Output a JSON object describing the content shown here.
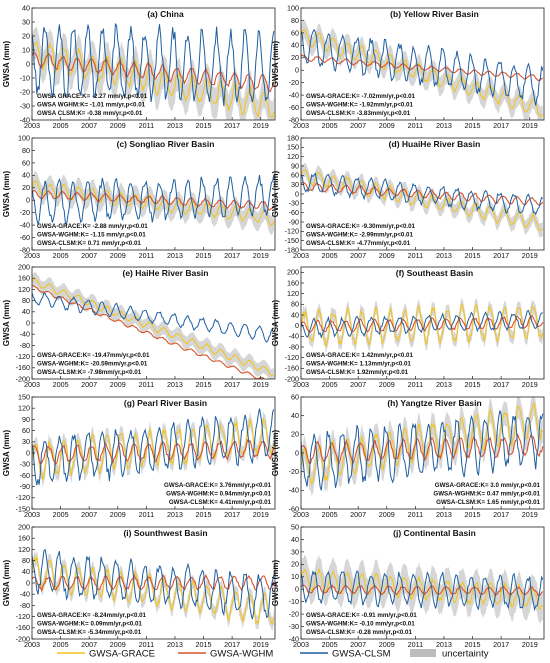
{
  "figure": {
    "legend": [
      {
        "name": "GWSA-GRACE",
        "color": "#f2c318",
        "kind": "line"
      },
      {
        "name": "GWSA-WGHM",
        "color": "#d9532b",
        "kind": "line"
      },
      {
        "name": "GWSA-CLSM",
        "color": "#1f5fa0",
        "kind": "line"
      },
      {
        "name": "uncertainty",
        "color": "#bdbdbd",
        "kind": "band"
      }
    ],
    "series_colors": {
      "grace": "#f2c318",
      "wghm": "#d9532b",
      "clsm": "#1f5fa0",
      "uncertainty": "#c8c8c8"
    }
  },
  "chart_data": [
    {
      "type": "line",
      "title": "(a) China",
      "ylabel": "GWSA (mm)",
      "xlim": [
        2003,
        2020
      ],
      "ylim": [
        -40,
        40
      ],
      "x_ticks": [
        "2003",
        "2005",
        "2007",
        "2009",
        "2011",
        "2013",
        "2015",
        "2017",
        "2019"
      ],
      "y_ticks": [
        -40,
        -30,
        -20,
        -10,
        0,
        10,
        20,
        30,
        40
      ],
      "stats": [
        "GWSA GRACE:K= -2.27 mm/yr,p<0.01",
        "GWSA WGHM:K= -1.01 mm/yr,p<0.01",
        "GWSA CLSM:K= -0.38 mm/yr,p<0.01"
      ],
      "stats_pos": "bottom-left",
      "series": [
        {
          "key": "grace",
          "trend_mm_per_yr": -2.27,
          "seasonal_amplitude": 9,
          "start_level": 8
        },
        {
          "key": "wghm",
          "trend_mm_per_yr": -1.01,
          "seasonal_amplitude": 5,
          "start_level": 3
        },
        {
          "key": "clsm",
          "trend_mm_per_yr": -0.38,
          "seasonal_amplitude": 24,
          "start_level": 3
        }
      ]
    },
    {
      "type": "line",
      "title": "(b) Yellow River Basin",
      "ylabel": "GWSA (mm)",
      "xlim": [
        2003,
        2020
      ],
      "ylim": [
        -80,
        100
      ],
      "x_ticks": [
        "2003",
        "2005",
        "2007",
        "2009",
        "2011",
        "2013",
        "2015",
        "2017",
        "2019"
      ],
      "y_ticks": [
        -80,
        -60,
        -40,
        -20,
        0,
        20,
        40,
        60,
        80,
        100
      ],
      "stats": [
        "GWSA-GRACE:K= -7.02mm/yr,p<0.01",
        "GWSA-WGHM:K= -1.92mm/yr,p<0.01",
        "GWSA-CLSM:K= -3.83mm/yr,p<0.01"
      ],
      "stats_pos": "bottom-left",
      "series": [
        {
          "key": "grace",
          "trend_mm_per_yr": -7.02,
          "seasonal_amplitude": 12,
          "start_level": 55
        },
        {
          "key": "wghm",
          "trend_mm_per_yr": -1.92,
          "seasonal_amplitude": 4,
          "start_level": 20
        },
        {
          "key": "clsm",
          "trend_mm_per_yr": -3.83,
          "seasonal_amplitude": 28,
          "start_level": 40
        }
      ]
    },
    {
      "type": "line",
      "title": "(c) Songliao  River Basin",
      "ylabel": "GWSA (mm)",
      "xlim": [
        2003,
        2020
      ],
      "ylim": [
        -80,
        100
      ],
      "x_ticks": [
        "2003",
        "2005",
        "2007",
        "2009",
        "2011",
        "2013",
        "2015",
        "2017",
        "2019"
      ],
      "y_ticks": [
        -80,
        -60,
        -40,
        -20,
        0,
        20,
        40,
        60,
        80,
        100
      ],
      "stats": [
        "GWSA-GRACE:K= -2.88 mm/yr,p<0.01",
        "GWSA-WGHM:K= -1.15 mm/yr,p<0.01",
        "GWSA-CLSM:K= 0.71 mm/yr,p<0.01"
      ],
      "stats_pos": "bottom-left",
      "series": [
        {
          "key": "grace",
          "trend_mm_per_yr": -2.88,
          "seasonal_amplitude": 10,
          "start_level": 20
        },
        {
          "key": "wghm",
          "trend_mm_per_yr": -1.15,
          "seasonal_amplitude": 6,
          "start_level": 10
        },
        {
          "key": "clsm",
          "trend_mm_per_yr": 0.71,
          "seasonal_amplitude": 30,
          "start_level": -5
        }
      ]
    },
    {
      "type": "line",
      "title": "(d) HuaiHe River Basin",
      "ylabel": "GWSA (mm)",
      "xlim": [
        2003,
        2020
      ],
      "ylim": [
        -180,
        180
      ],
      "x_ticks": [
        "2003",
        "2005",
        "2007",
        "2009",
        "2011",
        "2013",
        "2015",
        "2017",
        "2019"
      ],
      "y_ticks": [
        -180,
        -150,
        -120,
        -90,
        -60,
        -30,
        0,
        30,
        60,
        90,
        120,
        150,
        180
      ],
      "stats": [
        "GWSA-GRACE:K= -9.30mm/yr,p<0.01",
        "GWSA-WGHM:K= -2.99mm/yr,p<0.01",
        "GWSA-CLSM:K= -4.77mm/yr,p<0.01"
      ],
      "stats_pos": "bottom-left",
      "series": [
        {
          "key": "grace",
          "trend_mm_per_yr": -9.3,
          "seasonal_amplitude": 22,
          "start_level": 60
        },
        {
          "key": "wghm",
          "trend_mm_per_yr": -2.99,
          "seasonal_amplitude": 12,
          "start_level": 25
        },
        {
          "key": "clsm",
          "trend_mm_per_yr": -4.77,
          "seasonal_amplitude": 30,
          "start_level": 40
        }
      ]
    },
    {
      "type": "line",
      "title": "(e) HaiHe River Basin",
      "ylabel": "GWSA (mm)",
      "xlim": [
        2003,
        2020
      ],
      "ylim": [
        -200,
        200
      ],
      "x_ticks": [
        "2003",
        "2005",
        "2007",
        "2009",
        "2011",
        "2013",
        "2015",
        "2017",
        "2019"
      ],
      "y_ticks": [
        -200,
        -160,
        -120,
        -80,
        -40,
        0,
        40,
        80,
        120,
        160,
        200
      ],
      "stats": [
        "GWSA-GRACE:K= -19.47mm/yr,p<0.01",
        "GWSA-WGHM:K= -20.59mm/yr,p<0.01",
        "GWSA-CLSM:K= -7.98mm/yr,p<0.01"
      ],
      "stats_pos": "bottom-left",
      "series": [
        {
          "key": "grace",
          "trend_mm_per_yr": -19.47,
          "seasonal_amplitude": 12,
          "start_level": 150
        },
        {
          "key": "wghm",
          "trend_mm_per_yr": -20.59,
          "seasonal_amplitude": 6,
          "start_level": 130
        },
        {
          "key": "clsm",
          "trend_mm_per_yr": -7.98,
          "seasonal_amplitude": 22,
          "start_level": 90
        }
      ]
    },
    {
      "type": "line",
      "title": "(f) Southeast Basin",
      "ylabel": "GWSA (mm)",
      "xlim": [
        2003,
        2020
      ],
      "ylim": [
        -200,
        220
      ],
      "x_ticks": [
        "2003",
        "2005",
        "2007",
        "2009",
        "2011",
        "2013",
        "2015",
        "2017",
        "2019"
      ],
      "y_ticks": [
        -200,
        -160,
        -120,
        -80,
        -40,
        0,
        40,
        80,
        120,
        160,
        200
      ],
      "stats": [
        "GWSA-GRACE:K= 1.42mm/yr,p<0.01",
        "GWSA-WGHM:K= 1.13mm/yr,p<0.01",
        "GWSA-CLSM:K= 1.92mm/yr,p<0.01"
      ],
      "stats_pos": "bottom-left",
      "series": [
        {
          "key": "grace",
          "trend_mm_per_yr": 1.42,
          "seasonal_amplitude": 60,
          "start_level": -10
        },
        {
          "key": "wghm",
          "trend_mm_per_yr": 1.13,
          "seasonal_amplitude": 20,
          "start_level": -5
        },
        {
          "key": "clsm",
          "trend_mm_per_yr": 1.92,
          "seasonal_amplitude": 30,
          "start_level": -10
        }
      ]
    },
    {
      "type": "line",
      "title": "(g) Pearl River Basin",
      "ylabel": "GWSA (mm)",
      "xlim": [
        2003,
        2020
      ],
      "ylim": [
        -150,
        150
      ],
      "x_ticks": [
        "2003",
        "2005",
        "2007",
        "2009",
        "2011",
        "2013",
        "2015",
        "2017",
        "2019"
      ],
      "y_ticks": [
        -150,
        -120,
        -90,
        -60,
        -30,
        0,
        30,
        60,
        90,
        120,
        150
      ],
      "stats": [
        "GWSA-GRACE:K= 3.76mm/yr,p<0.01",
        "GWSA-WGHM:K= 0.94mm/yr,p<0.01",
        "GWSA-CLSM:K= 4.41mm/yr,p<0.01"
      ],
      "stats_pos": "bottom-right",
      "series": [
        {
          "key": "grace",
          "trend_mm_per_yr": 3.76,
          "seasonal_amplitude": 45,
          "start_level": -20
        },
        {
          "key": "wghm",
          "trend_mm_per_yr": 0.94,
          "seasonal_amplitude": 22,
          "start_level": -5
        },
        {
          "key": "clsm",
          "trend_mm_per_yr": 4.41,
          "seasonal_amplitude": 60,
          "start_level": -25
        }
      ]
    },
    {
      "type": "line",
      "title": "(h) Yangtze River Basin",
      "ylabel": "GWSA (mm)",
      "xlim": [
        2003,
        2020
      ],
      "ylim": [
        -60,
        60
      ],
      "x_ticks": [
        "2003",
        "2005",
        "2007",
        "2009",
        "2011",
        "2013",
        "2015",
        "2017",
        "2019"
      ],
      "y_ticks": [
        -60,
        -40,
        -20,
        0,
        20,
        40,
        60
      ],
      "stats": [
        "GWSA-GRACE:K= 3.0 mm/yr,p<0.01",
        "GWSA-WGHM:K= 0.47 mm/yr,p<0.01",
        "GWSA-CLSM:K= 1.65 mm/yr,p<0.01"
      ],
      "stats_pos": "bottom-right",
      "series": [
        {
          "key": "grace",
          "trend_mm_per_yr": 3.0,
          "seasonal_amplitude": 18,
          "start_level": -15
        },
        {
          "key": "wghm",
          "trend_mm_per_yr": 0.47,
          "seasonal_amplitude": 10,
          "start_level": 0
        },
        {
          "key": "clsm",
          "trend_mm_per_yr": 1.65,
          "seasonal_amplitude": 28,
          "start_level": -10
        }
      ]
    },
    {
      "type": "line",
      "title": "(i) Sounthwest Basin",
      "ylabel": "GWSA (mm)",
      "xlim": [
        2003,
        2020
      ],
      "ylim": [
        -200,
        200
      ],
      "x_ticks": [
        "2003",
        "2005",
        "2007",
        "2009",
        "2011",
        "2013",
        "2015",
        "2017",
        "2019"
      ],
      "y_ticks": [
        -200,
        -160,
        -120,
        -80,
        -40,
        0,
        40,
        80,
        120,
        160,
        200
      ],
      "stats": [
        "GWSA-GRACE:K= -8.24mm/yr,p<0.01",
        "GWSA-WGHM:K= 0.09mm/yr,p<0.01",
        "GWSA-CLSM:K= -5.34mm/yr,p<0.01"
      ],
      "stats_pos": "bottom-left",
      "series": [
        {
          "key": "grace",
          "trend_mm_per_yr": -8.24,
          "seasonal_amplitude": 50,
          "start_level": 40
        },
        {
          "key": "wghm",
          "trend_mm_per_yr": 0.09,
          "seasonal_amplitude": 22,
          "start_level": 0
        },
        {
          "key": "clsm",
          "trend_mm_per_yr": -5.34,
          "seasonal_amplitude": 70,
          "start_level": 40
        }
      ]
    },
    {
      "type": "line",
      "title": "(j) Continental Basin",
      "ylabel": "GWSA (mm)",
      "xlim": [
        2003,
        2020
      ],
      "ylim": [
        -40,
        50
      ],
      "x_ticks": [
        "2003",
        "2005",
        "2007",
        "2009",
        "2011",
        "2013",
        "2015",
        "2017",
        "2019"
      ],
      "y_ticks": [
        -40,
        -30,
        -20,
        -10,
        0,
        10,
        20,
        30,
        40,
        50
      ],
      "stats": [
        "GWSA-GRACE:K= -0.91 mm/yr,p<0.01",
        "GWSA-WGHM:K= -0.10 mm/yr,p<0.01",
        "GWSA-CLSM:K= -0.28 mm/yr,p<0.01"
      ],
      "stats_pos": "bottom-left",
      "series": [
        {
          "key": "grace",
          "trend_mm_per_yr": -0.91,
          "seasonal_amplitude": 8,
          "start_level": 8
        },
        {
          "key": "wghm",
          "trend_mm_per_yr": -0.1,
          "seasonal_amplitude": 3,
          "start_level": 0
        },
        {
          "key": "clsm",
          "trend_mm_per_yr": -0.28,
          "seasonal_amplitude": 12,
          "start_level": 2
        }
      ]
    }
  ]
}
